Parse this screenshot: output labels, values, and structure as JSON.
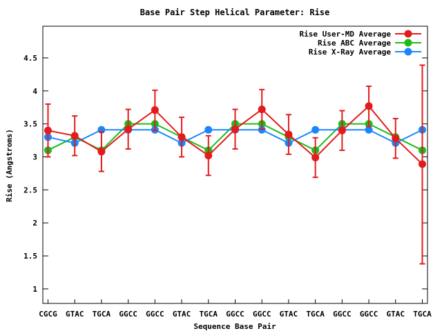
{
  "chart_data": {
    "type": "line",
    "title": "Base Pair Step Helical Parameter: Rise",
    "xlabel": "Sequence Base Pair",
    "ylabel": "Rise (Angstroms)",
    "categories": [
      "CGCG",
      "GTAC",
      "TGCA",
      "GGCC",
      "GGCC",
      "GTAC",
      "TGCA",
      "GGCC",
      "GGCC",
      "GTAC",
      "TGCA",
      "GGCC",
      "GGCC",
      "GTAC",
      "TGCA"
    ],
    "ylim": [
      0.78,
      4.98
    ],
    "yticks": [
      1,
      1.5,
      2,
      2.5,
      3,
      3.5,
      4,
      4.5
    ],
    "ytick_labels": [
      "1",
      "1.5",
      "2",
      "2.5",
      "3",
      "3.5",
      "4",
      "4.5"
    ],
    "grid": false,
    "legend_position": "top-right",
    "series": [
      {
        "name": "Rise User-MD Average",
        "color": "#e41a1c",
        "values": [
          3.4,
          3.32,
          3.08,
          3.42,
          3.71,
          3.3,
          3.02,
          3.42,
          3.72,
          3.34,
          2.99,
          3.4,
          3.77,
          3.28,
          2.89
        ],
        "error_low": [
          3.0,
          3.02,
          2.78,
          3.12,
          3.4,
          3.0,
          2.72,
          3.12,
          3.42,
          3.04,
          2.69,
          3.1,
          3.46,
          2.98,
          1.38
        ],
        "error_high": [
          3.8,
          3.62,
          3.38,
          3.72,
          4.01,
          3.6,
          3.32,
          3.72,
          4.02,
          3.64,
          3.29,
          3.7,
          4.07,
          3.58,
          4.39
        ]
      },
      {
        "name": "Rise ABC Average",
        "color": "#1cbc1c",
        "values": [
          3.1,
          3.3,
          3.1,
          3.5,
          3.5,
          3.3,
          3.1,
          3.5,
          3.5,
          3.3,
          3.1,
          3.5,
          3.5,
          3.3,
          3.1
        ]
      },
      {
        "name": "Rise X-Ray Average",
        "color": "#1a85ff",
        "values": [
          3.3,
          3.21,
          3.41,
          3.41,
          3.41,
          3.21,
          3.41,
          3.41,
          3.41,
          3.21,
          3.41,
          3.41,
          3.41,
          3.21,
          3.41
        ]
      }
    ]
  }
}
